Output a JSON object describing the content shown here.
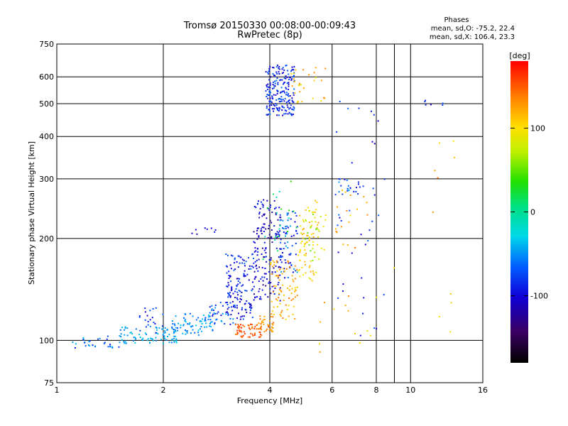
{
  "chart_data": {
    "type": "scatter",
    "title": "Tromsø 20150330 00:08:00-00:09:43",
    "subtitle": "RwPretec (8p)",
    "xlabel": "Frequency [MHz]",
    "ylabel": "Stationary phase Virtual Height [km]",
    "xscale": "log",
    "yscale": "log",
    "xlim": [
      1,
      16
    ],
    "ylim": [
      75,
      750
    ],
    "xticks": [
      1,
      2,
      4,
      6,
      8,
      10,
      16
    ],
    "yticks": [
      75,
      100,
      200,
      300,
      400,
      500,
      600,
      750
    ],
    "x_minor_gridlines": [
      9
    ],
    "grid": true,
    "legend": {
      "heading": "Phases",
      "line1": "mean, sd,O: -75.2, 22.4",
      "line2": "mean, sd,X: 106.4, 23.3",
      "placement": "top-right"
    },
    "colorbar": {
      "label": "[deg]",
      "range": [
        -180,
        180
      ],
      "ticks": [
        100,
        0,
        -100
      ],
      "tick_labels": [
        "100",
        "0",
        "-100"
      ]
    },
    "series": [
      {
        "clusters": [
          {
            "x": [
              1.1,
              1.5
            ],
            "y": [
              95,
              103
            ],
            "phase": [
              -90,
              -30
            ],
            "n": 30
          },
          {
            "x": [
              1.5,
              2.2
            ],
            "y": [
              98,
              110
            ],
            "phase": [
              -60,
              -30
            ],
            "n": 90
          },
          {
            "x": [
              1.7,
              2.0
            ],
            "y": [
              105,
              125
            ],
            "phase": [
              -110,
              -70
            ],
            "n": 20
          },
          {
            "x": [
              2.1,
              2.8
            ],
            "y": [
              103,
              120
            ],
            "phase": [
              -70,
              -30
            ],
            "n": 70
          },
          {
            "x": [
              2.7,
              3.2
            ],
            "y": [
              110,
              130
            ],
            "phase": [
              -100,
              -40
            ],
            "n": 40
          },
          {
            "x": [
              3.0,
              3.6
            ],
            "y": [
              115,
              180
            ],
            "phase": [
              -120,
              -60
            ],
            "n": 140
          },
          {
            "x": [
              3.6,
              4.3
            ],
            "y": [
              130,
              260
            ],
            "phase": [
              -130,
              -80
            ],
            "n": 170
          },
          {
            "x": [
              4.2,
              4.8
            ],
            "y": [
              150,
              240
            ],
            "phase": [
              -110,
              -40
            ],
            "n": 70
          },
          {
            "x": [
              3.9,
              4.7
            ],
            "y": [
              460,
              650
            ],
            "phase": [
              -110,
              -60
            ],
            "n": 200
          },
          {
            "x": [
              2.4,
              2.9
            ],
            "y": [
              205,
              215
            ],
            "phase": [
              -110,
              -80
            ],
            "n": 8
          },
          {
            "x": [
              6.2,
              7.2
            ],
            "y": [
              270,
              300
            ],
            "phase": [
              -100,
              -40
            ],
            "n": 20
          },
          {
            "x": [
              6.0,
              8.5
            ],
            "y": [
              100,
              560
            ],
            "phase": [
              -110,
              -60
            ],
            "n": 40
          },
          {
            "x": [
              10.5,
              12.5
            ],
            "y": [
              495,
              520
            ],
            "phase": [
              -110,
              -70
            ],
            "n": 6
          }
        ]
      },
      {
        "clusters": [
          {
            "x": [
              3.2,
              3.8
            ],
            "y": [
              102,
              112
            ],
            "phase": [
              135,
              165
            ],
            "n": 60
          },
          {
            "x": [
              3.7,
              4.1
            ],
            "y": [
              106,
              118
            ],
            "phase": [
              115,
              150
            ],
            "n": 40
          },
          {
            "x": [
              4.0,
              4.8
            ],
            "y": [
              115,
              175
            ],
            "phase": [
              100,
              140
            ],
            "n": 80
          },
          {
            "x": [
              4.8,
              5.5
            ],
            "y": [
              150,
              260
            ],
            "phase": [
              85,
              125
            ],
            "n": 70
          },
          {
            "x": [
              5.0,
              5.8
            ],
            "y": [
              170,
              250
            ],
            "phase": [
              50,
              110
            ],
            "n": 30
          },
          {
            "x": [
              4.6,
              5.8
            ],
            "y": [
              500,
              640
            ],
            "phase": [
              80,
              140
            ],
            "n": 30
          },
          {
            "x": [
              6.0,
              7.0
            ],
            "y": [
              180,
              280
            ],
            "phase": [
              110,
              150
            ],
            "n": 12
          },
          {
            "x": [
              5.5,
              9.0
            ],
            "y": [
              90,
              300
            ],
            "phase": [
              90,
              140
            ],
            "n": 20
          },
          {
            "x": [
              11.0,
              14.0
            ],
            "y": [
              80,
              520
            ],
            "phase": [
              90,
              150
            ],
            "n": 10
          },
          {
            "x": [
              3.8,
              4.8
            ],
            "y": [
              170,
              300
            ],
            "phase": [
              -20,
              40
            ],
            "n": 20
          }
        ]
      }
    ]
  }
}
